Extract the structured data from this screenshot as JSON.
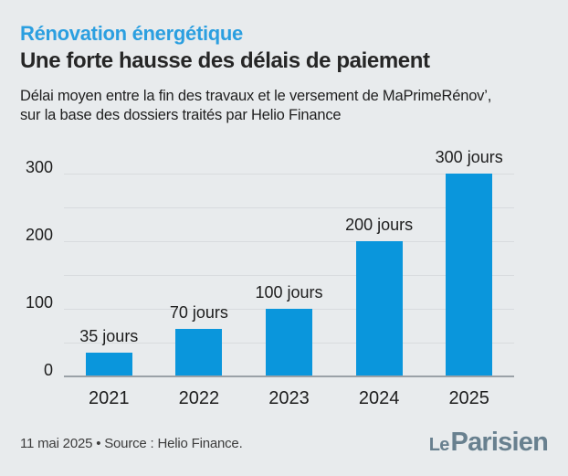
{
  "header": {
    "kicker": "Rénovation énergétique",
    "title": "Une forte hausse des délais de paiement",
    "subtitle": "Délai moyen entre la fin des travaux et le versement de MaPrimeRénov’,\nsur la base des dossiers traités par Helio Finance"
  },
  "chart_data": {
    "type": "bar",
    "categories": [
      "2021",
      "2022",
      "2023",
      "2024",
      "2025"
    ],
    "values": [
      35,
      70,
      100,
      200,
      300
    ],
    "bar_labels": [
      "35 jours",
      "70 jours",
      "100 jours",
      "200 jours",
      "300 jours"
    ],
    "unit": "jours",
    "title": "",
    "xlabel": "",
    "ylabel": "",
    "ylim": [
      0,
      300
    ],
    "y_ticks": [
      0,
      100,
      200,
      300
    ],
    "gridline_step": 50,
    "grid": true,
    "legend": "none",
    "bar_color": "#0a96dc"
  },
  "footer": {
    "source": "11 mai 2025 • Source : Helio Finance.",
    "logo": {
      "le": "Le",
      "main": "Parisien"
    }
  },
  "colors": {
    "background": "#e8ebed",
    "accent_blue": "#0a96dc",
    "kicker_blue": "#2b9fe0",
    "title_dark": "#262626",
    "grid_line": "#d8dbde",
    "axis_line": "#9aa1a7",
    "logo_gray": "#68808f"
  }
}
